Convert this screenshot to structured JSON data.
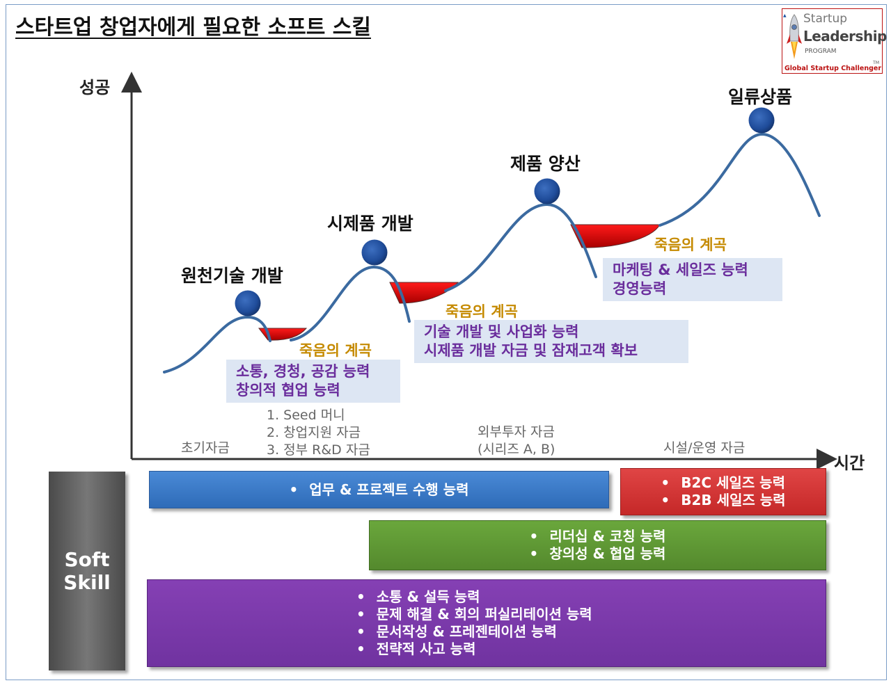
{
  "title": "스타트업 창업자에게 필요한 소프트 스킬",
  "logo": {
    "line1": "Startup",
    "line2": "Leadership",
    "line3": "PROGRAM",
    "tagline": "Global Startup Challenger",
    "tm": "TM"
  },
  "axes": {
    "y_label": "성공",
    "x_label": "시간"
  },
  "peaks": [
    {
      "label": "원천기술 개발"
    },
    {
      "label": "시제품 개발"
    },
    {
      "label": "제품 양산"
    },
    {
      "label": "일류상품"
    }
  ],
  "death_valley": "죽음의 계곡",
  "skill_boxes": [
    {
      "lines": [
        "소통, 경청, 공감 능력",
        "창의적 협업 능력"
      ]
    },
    {
      "lines": [
        "기술 개발 및 사업화 능력",
        "시제품 개발 자금 및 잠재고객 확보"
      ]
    },
    {
      "lines": [
        "마케팅 & 세일즈 능력",
        "경영능력"
      ]
    }
  ],
  "funding": {
    "initial": "초기자금",
    "initial_list": [
      "1. Seed 머니",
      "2. 창업지원 자금",
      "3. 정부 R&D 자금"
    ],
    "external": [
      "외부투자 자금",
      "(시리즈 A, B)"
    ],
    "facility": "시설/운영 자금"
  },
  "soft_skill": {
    "line1": "Soft",
    "line2": "Skill"
  },
  "bars": {
    "blue": {
      "items": [
        "업무 & 프로젝트 수행 능력"
      ],
      "color": "#3a79c8"
    },
    "red": {
      "items": [
        "B2C 세일즈 능력",
        "B2B 세일즈 능력"
      ],
      "color": "#d03030"
    },
    "green": {
      "items": [
        "리더십 & 코칭 능력",
        "창의성 & 협업 능력"
      ],
      "color": "#5d9633"
    },
    "purple": {
      "items": [
        "소통 & 설득 능력",
        "문제 해결 & 회의 퍼실리테이션 능력",
        "문서작성 & 프레젠테이션 능력",
        "전략적 사고 능력"
      ],
      "color": "#7a36a8"
    }
  },
  "colors": {
    "curve": "#3b6aa0",
    "valley": "#e00000",
    "death_text": "#c58a00",
    "skill_text": "#6a2d9c",
    "skill_bg": "#dde6f3"
  }
}
